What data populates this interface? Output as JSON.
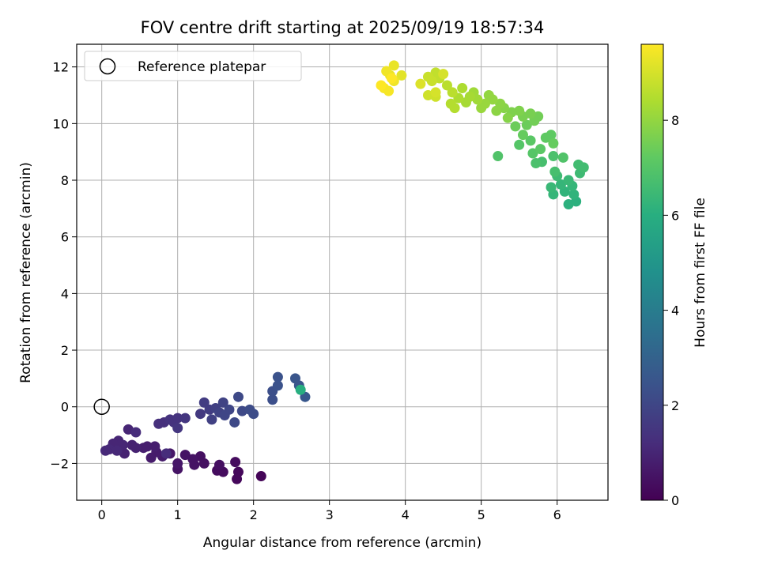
{
  "chart_data": {
    "type": "scatter",
    "title": "FOV centre drift starting at 2025/09/19 18:57:34",
    "xlabel": "Angular distance from reference (arcmin)",
    "ylabel": "Rotation from reference (arcmin)",
    "xlim": [
      -0.33,
      6.67
    ],
    "ylim": [
      -3.3,
      12.8
    ],
    "xticks": [
      0,
      1,
      2,
      3,
      4,
      5,
      6
    ],
    "yticks": [
      -2,
      0,
      2,
      4,
      6,
      8,
      10,
      12
    ],
    "grid": true,
    "legend": {
      "placement": "top-left",
      "entries": [
        {
          "label": "Reference platepar",
          "marker": "hollow-circle"
        }
      ]
    },
    "reference_point": {
      "x": 0,
      "y": 0
    },
    "colorbar": {
      "label": "Hours from first FF file",
      "range": [
        0,
        9.6
      ],
      "ticks": [
        0,
        2,
        4,
        6,
        8
      ],
      "colormap": "viridis"
    },
    "series": [
      {
        "points": [
          {
            "x": 2.1,
            "y": -2.45,
            "h": 0.1
          },
          {
            "x": 1.78,
            "y": -2.55,
            "h": 0.2
          },
          {
            "x": 1.8,
            "y": -2.3,
            "h": 0.2
          },
          {
            "x": 1.76,
            "y": -1.95,
            "h": 0.3
          },
          {
            "x": 1.6,
            "y": -2.3,
            "h": 0.3
          },
          {
            "x": 1.52,
            "y": -2.25,
            "h": 0.3
          },
          {
            "x": 1.55,
            "y": -2.05,
            "h": 0.4
          },
          {
            "x": 1.35,
            "y": -2.0,
            "h": 0.4
          },
          {
            "x": 1.3,
            "y": -1.75,
            "h": 0.4
          },
          {
            "x": 1.22,
            "y": -2.05,
            "h": 0.5
          },
          {
            "x": 1.2,
            "y": -1.85,
            "h": 0.5
          },
          {
            "x": 1.1,
            "y": -1.7,
            "h": 0.5
          },
          {
            "x": 1.0,
            "y": -2.2,
            "h": 0.5
          },
          {
            "x": 1.0,
            "y": -2.0,
            "h": 0.6
          },
          {
            "x": 0.9,
            "y": -1.65,
            "h": 0.6
          },
          {
            "x": 0.8,
            "y": -1.75,
            "h": 0.7
          },
          {
            "x": 0.72,
            "y": -1.6,
            "h": 0.7
          },
          {
            "x": 0.65,
            "y": -1.8,
            "h": 0.7
          },
          {
            "x": 0.6,
            "y": -1.4,
            "h": 0.8
          },
          {
            "x": 0.7,
            "y": -1.4,
            "h": 0.8
          },
          {
            "x": 0.55,
            "y": -1.45,
            "h": 0.8
          },
          {
            "x": 0.45,
            "y": -1.45,
            "h": 0.9
          },
          {
            "x": 0.4,
            "y": -1.35,
            "h": 0.9
          },
          {
            "x": 0.3,
            "y": -1.65,
            "h": 0.9
          },
          {
            "x": 0.35,
            "y": -0.8,
            "h": 1.0
          },
          {
            "x": 0.28,
            "y": -1.35,
            "h": 1.0
          },
          {
            "x": 0.22,
            "y": -1.2,
            "h": 1.0
          },
          {
            "x": 0.15,
            "y": -1.3,
            "h": 1.0
          },
          {
            "x": 0.1,
            "y": -1.5,
            "h": 1.1
          },
          {
            "x": 0.05,
            "y": -1.55,
            "h": 1.1
          },
          {
            "x": 0.2,
            "y": -1.55,
            "h": 1.1
          },
          {
            "x": 0.45,
            "y": -0.9,
            "h": 1.2
          },
          {
            "x": 0.85,
            "y": -1.65,
            "h": 1.2
          },
          {
            "x": 0.75,
            "y": -0.6,
            "h": 1.3
          },
          {
            "x": 0.82,
            "y": -0.55,
            "h": 1.3
          },
          {
            "x": 0.9,
            "y": -0.45,
            "h": 1.4
          },
          {
            "x": 0.95,
            "y": -0.55,
            "h": 1.4
          },
          {
            "x": 1.0,
            "y": -0.4,
            "h": 1.4
          },
          {
            "x": 1.0,
            "y": -0.75,
            "h": 1.5
          },
          {
            "x": 1.1,
            "y": -0.4,
            "h": 1.5
          },
          {
            "x": 1.3,
            "y": -0.25,
            "h": 1.6
          },
          {
            "x": 1.35,
            "y": 0.15,
            "h": 1.7
          },
          {
            "x": 1.42,
            "y": -0.1,
            "h": 1.7
          },
          {
            "x": 1.45,
            "y": -0.45,
            "h": 1.8
          },
          {
            "x": 1.5,
            "y": -0.05,
            "h": 1.8
          },
          {
            "x": 1.55,
            "y": -0.2,
            "h": 1.9
          },
          {
            "x": 1.6,
            "y": 0.15,
            "h": 1.9
          },
          {
            "x": 1.62,
            "y": -0.3,
            "h": 2.0
          },
          {
            "x": 1.68,
            "y": -0.1,
            "h": 2.0
          },
          {
            "x": 1.75,
            "y": -0.55,
            "h": 2.1
          },
          {
            "x": 1.8,
            "y": 0.35,
            "h": 2.1
          },
          {
            "x": 1.85,
            "y": -0.15,
            "h": 2.1
          },
          {
            "x": 1.95,
            "y": -0.1,
            "h": 2.2
          },
          {
            "x": 2.0,
            "y": -0.25,
            "h": 2.2
          },
          {
            "x": 2.25,
            "y": 0.25,
            "h": 2.3
          },
          {
            "x": 2.25,
            "y": 0.55,
            "h": 2.3
          },
          {
            "x": 2.32,
            "y": 0.75,
            "h": 2.4
          },
          {
            "x": 2.32,
            "y": 1.05,
            "h": 2.4
          },
          {
            "x": 2.55,
            "y": 1.0,
            "h": 2.5
          },
          {
            "x": 2.6,
            "y": 0.75,
            "h": 2.5
          },
          {
            "x": 2.68,
            "y": 0.35,
            "h": 2.6
          },
          {
            "x": 2.62,
            "y": 0.6,
            "h": 6.0
          },
          {
            "x": 6.25,
            "y": 7.25,
            "h": 6.1
          },
          {
            "x": 6.15,
            "y": 7.15,
            "h": 6.1
          },
          {
            "x": 6.22,
            "y": 7.5,
            "h": 6.2
          },
          {
            "x": 6.1,
            "y": 7.6,
            "h": 6.2
          },
          {
            "x": 5.95,
            "y": 7.5,
            "h": 6.3
          },
          {
            "x": 6.2,
            "y": 7.8,
            "h": 6.3
          },
          {
            "x": 6.05,
            "y": 7.85,
            "h": 6.3
          },
          {
            "x": 6.15,
            "y": 8.0,
            "h": 6.4
          },
          {
            "x": 5.92,
            "y": 7.75,
            "h": 6.4
          },
          {
            "x": 6.0,
            "y": 8.15,
            "h": 6.5
          },
          {
            "x": 6.3,
            "y": 8.25,
            "h": 6.5
          },
          {
            "x": 6.35,
            "y": 8.45,
            "h": 6.6
          },
          {
            "x": 6.28,
            "y": 8.55,
            "h": 6.6
          },
          {
            "x": 5.97,
            "y": 8.3,
            "h": 6.7
          },
          {
            "x": 5.8,
            "y": 8.65,
            "h": 6.7
          },
          {
            "x": 5.72,
            "y": 8.6,
            "h": 6.8
          },
          {
            "x": 5.95,
            "y": 8.85,
            "h": 6.8
          },
          {
            "x": 6.08,
            "y": 8.8,
            "h": 6.9
          },
          {
            "x": 5.22,
            "y": 8.85,
            "h": 6.9
          },
          {
            "x": 5.5,
            "y": 9.25,
            "h": 7.0
          },
          {
            "x": 5.68,
            "y": 8.95,
            "h": 7.0
          },
          {
            "x": 5.78,
            "y": 9.1,
            "h": 7.1
          },
          {
            "x": 5.65,
            "y": 9.4,
            "h": 7.1
          },
          {
            "x": 5.85,
            "y": 9.5,
            "h": 7.2
          },
          {
            "x": 5.92,
            "y": 9.6,
            "h": 7.2
          },
          {
            "x": 5.95,
            "y": 9.3,
            "h": 7.3
          },
          {
            "x": 5.55,
            "y": 9.6,
            "h": 7.3
          },
          {
            "x": 5.45,
            "y": 9.9,
            "h": 7.4
          },
          {
            "x": 5.6,
            "y": 9.95,
            "h": 7.4
          },
          {
            "x": 5.7,
            "y": 10.1,
            "h": 7.5
          },
          {
            "x": 5.75,
            "y": 10.25,
            "h": 7.5
          },
          {
            "x": 5.65,
            "y": 10.35,
            "h": 7.6
          },
          {
            "x": 5.55,
            "y": 10.25,
            "h": 7.6
          },
          {
            "x": 5.5,
            "y": 10.45,
            "h": 7.7
          },
          {
            "x": 5.4,
            "y": 10.4,
            "h": 7.7
          },
          {
            "x": 5.35,
            "y": 10.2,
            "h": 7.8
          },
          {
            "x": 5.3,
            "y": 10.55,
            "h": 7.8
          },
          {
            "x": 5.25,
            "y": 10.7,
            "h": 7.9
          },
          {
            "x": 5.2,
            "y": 10.45,
            "h": 7.9
          },
          {
            "x": 5.15,
            "y": 10.85,
            "h": 8.0
          },
          {
            "x": 5.1,
            "y": 11.0,
            "h": 8.0
          },
          {
            "x": 5.05,
            "y": 10.7,
            "h": 8.1
          },
          {
            "x": 5.0,
            "y": 10.55,
            "h": 8.1
          },
          {
            "x": 4.95,
            "y": 10.85,
            "h": 8.2
          },
          {
            "x": 4.9,
            "y": 11.1,
            "h": 8.2
          },
          {
            "x": 4.85,
            "y": 10.95,
            "h": 8.3
          },
          {
            "x": 4.8,
            "y": 10.75,
            "h": 8.3
          },
          {
            "x": 4.75,
            "y": 11.25,
            "h": 8.4
          },
          {
            "x": 4.7,
            "y": 10.9,
            "h": 8.4
          },
          {
            "x": 4.65,
            "y": 10.55,
            "h": 8.5
          },
          {
            "x": 4.6,
            "y": 10.7,
            "h": 8.5
          },
          {
            "x": 4.62,
            "y": 11.1,
            "h": 8.6
          },
          {
            "x": 4.55,
            "y": 11.35,
            "h": 8.6
          },
          {
            "x": 4.45,
            "y": 11.6,
            "h": 8.7
          },
          {
            "x": 4.4,
            "y": 11.8,
            "h": 8.7
          },
          {
            "x": 4.35,
            "y": 11.5,
            "h": 8.8
          },
          {
            "x": 4.3,
            "y": 11.65,
            "h": 8.8
          },
          {
            "x": 4.3,
            "y": 11.0,
            "h": 8.9
          },
          {
            "x": 4.4,
            "y": 10.95,
            "h": 8.9
          },
          {
            "x": 4.5,
            "y": 11.75,
            "h": 9.0
          },
          {
            "x": 4.4,
            "y": 11.1,
            "h": 9.0
          },
          {
            "x": 4.2,
            "y": 11.4,
            "h": 9.1
          },
          {
            "x": 3.95,
            "y": 11.7,
            "h": 9.2
          },
          {
            "x": 3.85,
            "y": 12.05,
            "h": 9.3
          },
          {
            "x": 3.8,
            "y": 11.7,
            "h": 9.3
          },
          {
            "x": 3.75,
            "y": 11.85,
            "h": 9.4
          },
          {
            "x": 3.85,
            "y": 11.5,
            "h": 9.4
          },
          {
            "x": 3.72,
            "y": 11.25,
            "h": 9.5
          },
          {
            "x": 3.78,
            "y": 11.15,
            "h": 9.5
          },
          {
            "x": 3.68,
            "y": 11.35,
            "h": 9.6
          },
          {
            "x": 3.82,
            "y": 11.6,
            "h": 9.6
          }
        ]
      }
    ]
  }
}
